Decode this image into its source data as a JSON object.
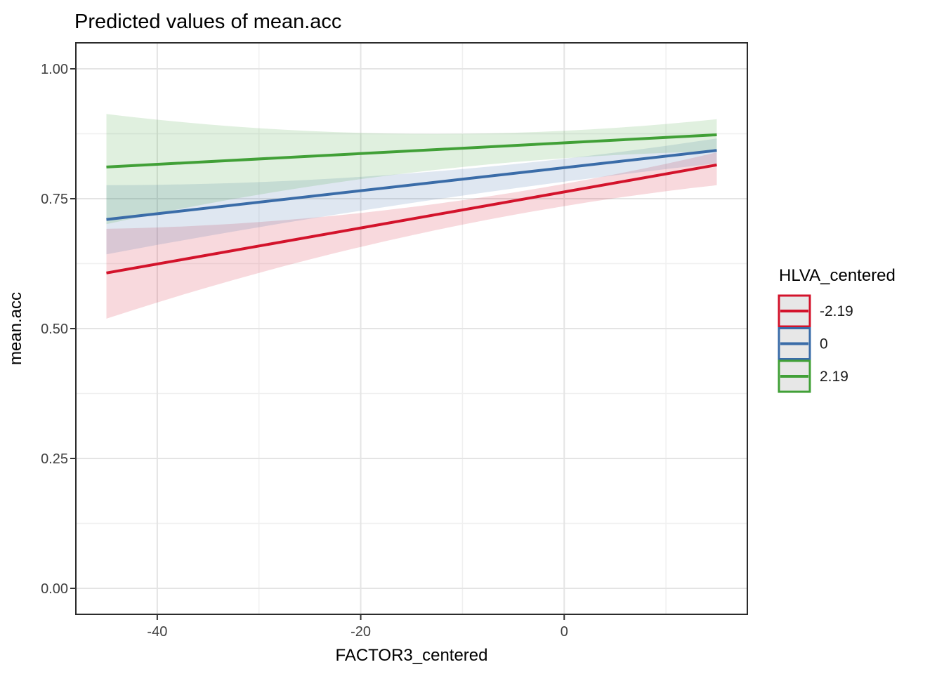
{
  "chart_data": {
    "type": "line",
    "title": "Predicted values of mean.acc",
    "xlabel": "FACTOR3_centered",
    "ylabel": "mean.acc",
    "grid": true,
    "legend_position": "right",
    "x_data_range": [
      -45,
      15
    ],
    "x_axis_range": [
      -48,
      18
    ],
    "y_axis_range": [
      -0.05,
      1.05
    ],
    "x_ticks": [
      {
        "value": -40,
        "label": "-40"
      },
      {
        "value": -20,
        "label": "-20"
      },
      {
        "value": 0,
        "label": "0"
      }
    ],
    "x_minor_ticks": [
      -30,
      -10,
      10
    ],
    "y_ticks": [
      {
        "value": 0.0,
        "label": "0.00"
      },
      {
        "value": 0.25,
        "label": "0.25"
      },
      {
        "value": 0.5,
        "label": "0.50"
      },
      {
        "value": 0.75,
        "label": "0.75"
      },
      {
        "value": 1.0,
        "label": "1.00"
      }
    ],
    "y_minor_ticks": [
      0.125,
      0.375,
      0.625,
      0.875
    ],
    "legend": {
      "title": "HLVA_centered"
    },
    "series": [
      {
        "name": "-2.19",
        "color": "#D3132B",
        "line": {
          "x": [
            -45,
            15
          ],
          "y": [
            0.607,
            0.815
          ]
        },
        "ci_x": [
          -45,
          -10,
          15
        ],
        "ci_upper": [
          0.692,
          0.747,
          0.839
        ],
        "ci_lower": [
          0.519,
          0.7,
          0.776
        ]
      },
      {
        "name": "0",
        "color": "#3A6CA8",
        "line": {
          "x": [
            -45,
            15
          ],
          "y": [
            0.71,
            0.843
          ]
        },
        "ci_x": [
          -45,
          -10,
          15
        ],
        "ci_upper": [
          0.776,
          0.807,
          0.866
        ],
        "ci_lower": [
          0.643,
          0.756,
          0.818
        ]
      },
      {
        "name": "2.19",
        "color": "#41A037",
        "line": {
          "x": [
            -45,
            15
          ],
          "y": [
            0.811,
            0.873
          ]
        },
        "ci_x": [
          -45,
          -10,
          15
        ],
        "ci_upper": [
          0.913,
          0.875,
          0.903
        ],
        "ci_lower": [
          0.701,
          0.811,
          0.841
        ]
      }
    ]
  },
  "theme": {
    "background": "#FFFFFF",
    "panel_fill": "#FFFFFF",
    "panel_border": "#2B2B2B",
    "grid_major": "#E4E4E4",
    "grid_minor": "#F0F0F0",
    "tick_color": "#333333",
    "tick_label_color": "#404040",
    "text_color": "#000000",
    "legend_key_fill": "#E7E7E7",
    "ribbon_opacity": 0.16
  }
}
